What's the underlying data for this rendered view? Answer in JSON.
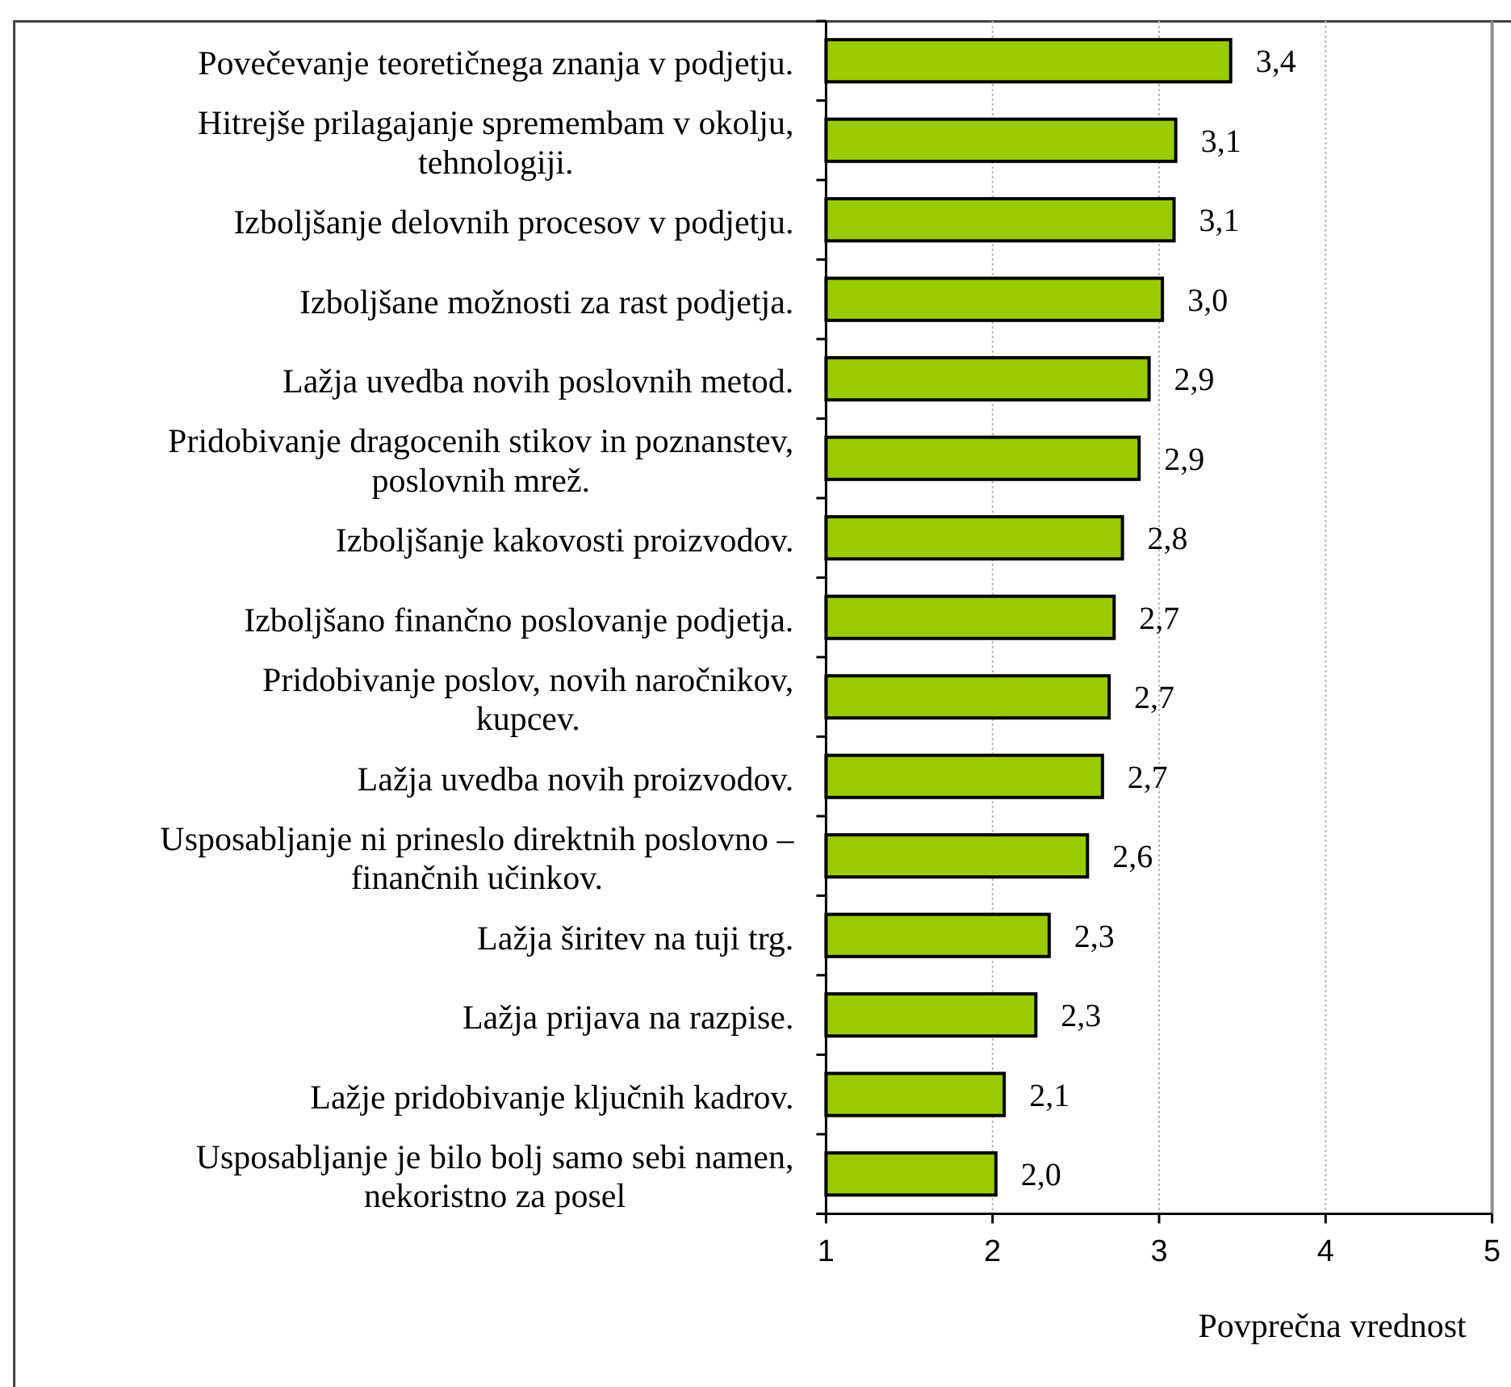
{
  "chart_data": {
    "type": "bar",
    "orientation": "horizontal",
    "xlabel": "Povprečna vrednost",
    "categories": [
      "Povečevanje teoretičnega znanja v podjetju.",
      "Hitrejše prilagajanje spremembam v okolju, tehnologiji.",
      "Izboljšanje delovnih procesov v podjetju.",
      "Izboljšane možnosti za rast podjetja.",
      "Lažja uvedba novih poslovnih metod.",
      "Pridobivanje dragocenih stikov in poznanstev, poslovnih mrež.",
      "Izboljšanje kakovosti proizvodov.",
      "Izboljšano finančno poslovanje podjetja.",
      "Pridobivanje poslov, novih naročnikov, kupcev.",
      "Lažja uvedba novih proizvodov.",
      "Usposabljanje ni prineslo direktnih poslovno – finančnih učinkov.",
      "Lažja širitev na tuji trg.",
      "Lažja prijava na razpise.",
      "Lažje pridobivanje ključnih kadrov.",
      "Usposabljanje je bilo bolj samo sebi namen, nekoristno za posel"
    ],
    "values": [
      3.43,
      3.1,
      3.09,
      3.02,
      2.94,
      2.88,
      2.78,
      2.73,
      2.7,
      2.66,
      2.57,
      2.34,
      2.26,
      2.07,
      2.02
    ],
    "value_labels": [
      "3,4",
      "3,1",
      "3,1",
      "3,0",
      "2,9",
      "2,9",
      "2,8",
      "2,7",
      "2,7",
      "2,7",
      "2,6",
      "2,3",
      "2,3",
      "2,1",
      "2,0"
    ],
    "color": "#99cc00",
    "xlim": [
      1,
      5
    ],
    "xticks": [
      1,
      2,
      3,
      4,
      5
    ],
    "grid": "x"
  }
}
